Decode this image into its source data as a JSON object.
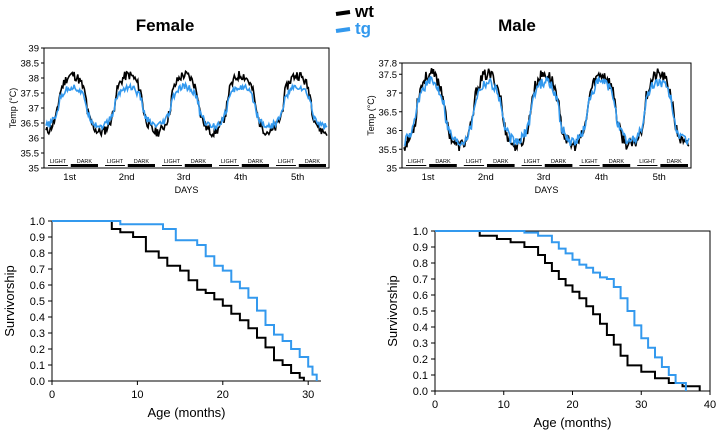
{
  "titles": {
    "female": "Female",
    "male": "Male"
  },
  "legend": [
    {
      "label": "wt",
      "color": "#000000"
    },
    {
      "label": "tg",
      "color": "#3399ee"
    }
  ],
  "chart_data": [
    {
      "id": "female-temp",
      "type": "line",
      "title": "Female",
      "ylabel": "Temp (°C)",
      "xlabel": "DAYS",
      "ylim": [
        35,
        39
      ],
      "yticks": [
        35,
        35.5,
        36,
        36.5,
        37,
        37.5,
        38,
        38.5,
        39
      ],
      "day_labels": [
        "1st",
        "2nd",
        "3rd",
        "4th",
        "5th"
      ],
      "phase_labels": [
        "LIGHT",
        "DARK"
      ],
      "series": [
        {
          "name": "wt",
          "color": "#000000",
          "low": 36.2,
          "high": 38.1
        },
        {
          "name": "tg",
          "color": "#3399ee",
          "low": 36.4,
          "high": 37.7
        }
      ]
    },
    {
      "id": "male-temp",
      "type": "line",
      "title": "Male",
      "ylabel": "Temp (°C)",
      "xlabel": "DAYS",
      "ylim": [
        35,
        37.8
      ],
      "yticks": [
        35,
        35.5,
        36,
        36.5,
        37,
        37.5,
        37.8
      ],
      "day_labels": [
        "1st",
        "2nd",
        "3rd",
        "4th",
        "5th"
      ],
      "phase_labels": [
        "LIGHT",
        "DARK"
      ],
      "series": [
        {
          "name": "wt",
          "color": "#000000",
          "low": 35.6,
          "high": 37.5
        },
        {
          "name": "tg",
          "color": "#3399ee",
          "low": 35.7,
          "high": 37.3
        }
      ]
    },
    {
      "id": "female-surv",
      "type": "line",
      "step": true,
      "ylabel": "Survivorship",
      "xlabel": "Age (months)",
      "xlim": [
        0,
        31.5
      ],
      "ylim": [
        0,
        1.0
      ],
      "xticks": [
        0,
        10,
        20,
        30
      ],
      "yticks": [
        0,
        0.1,
        0.2,
        0.3,
        0.4,
        0.5,
        0.6,
        0.7,
        0.8,
        0.9,
        1.0
      ],
      "series": [
        {
          "name": "wt",
          "color": "#000000",
          "x": [
            0,
            7,
            8,
            9.5,
            11,
            12.5,
            13.5,
            15,
            16,
            17,
            18,
            19,
            20,
            21,
            22,
            23,
            24,
            25,
            26,
            27,
            28,
            29,
            29.5
          ],
          "y": [
            1.0,
            0.95,
            0.93,
            0.9,
            0.81,
            0.77,
            0.72,
            0.69,
            0.63,
            0.57,
            0.55,
            0.51,
            0.47,
            0.42,
            0.38,
            0.33,
            0.27,
            0.21,
            0.13,
            0.1,
            0.05,
            0.02,
            0
          ]
        },
        {
          "name": "tg",
          "color": "#3399ee",
          "x": [
            0,
            8,
            13,
            14.5,
            17,
            18,
            19,
            20,
            21,
            22,
            23,
            24,
            25,
            26,
            27,
            28,
            29,
            30,
            30.5,
            31
          ],
          "y": [
            1.0,
            0.98,
            0.95,
            0.88,
            0.85,
            0.78,
            0.72,
            0.69,
            0.62,
            0.58,
            0.52,
            0.44,
            0.35,
            0.29,
            0.25,
            0.2,
            0.15,
            0.09,
            0.04,
            0
          ]
        }
      ]
    },
    {
      "id": "male-surv",
      "type": "line",
      "step": true,
      "ylabel": "Survivorship",
      "xlabel": "Age (months)",
      "xlim": [
        0,
        40
      ],
      "ylim": [
        0,
        1.0
      ],
      "xticks": [
        0,
        10,
        20,
        30,
        40
      ],
      "yticks": [
        0,
        0.1,
        0.2,
        0.3,
        0.4,
        0.5,
        0.6,
        0.7,
        0.8,
        0.9,
        1.0
      ],
      "series": [
        {
          "name": "wt",
          "color": "#000000",
          "x": [
            0,
            6.5,
            9,
            11,
            13,
            15,
            16,
            17,
            18,
            19,
            20,
            21,
            22,
            23,
            24,
            25,
            26,
            27,
            28,
            30,
            32,
            34,
            36,
            38.5
          ],
          "y": [
            1.0,
            0.97,
            0.95,
            0.93,
            0.9,
            0.85,
            0.8,
            0.75,
            0.7,
            0.66,
            0.62,
            0.58,
            0.53,
            0.48,
            0.42,
            0.35,
            0.29,
            0.22,
            0.16,
            0.12,
            0.08,
            0.05,
            0.03,
            0
          ]
        },
        {
          "name": "tg",
          "color": "#3399ee",
          "x": [
            0,
            13,
            15,
            17,
            18,
            19,
            20,
            21,
            22,
            23,
            24,
            25,
            26,
            27,
            28,
            29,
            30,
            31,
            32,
            33,
            34,
            35,
            36.5
          ],
          "y": [
            1.0,
            0.99,
            0.97,
            0.93,
            0.89,
            0.86,
            0.82,
            0.79,
            0.77,
            0.74,
            0.71,
            0.7,
            0.65,
            0.58,
            0.5,
            0.41,
            0.33,
            0.27,
            0.21,
            0.15,
            0.1,
            0.05,
            0
          ]
        }
      ]
    }
  ]
}
